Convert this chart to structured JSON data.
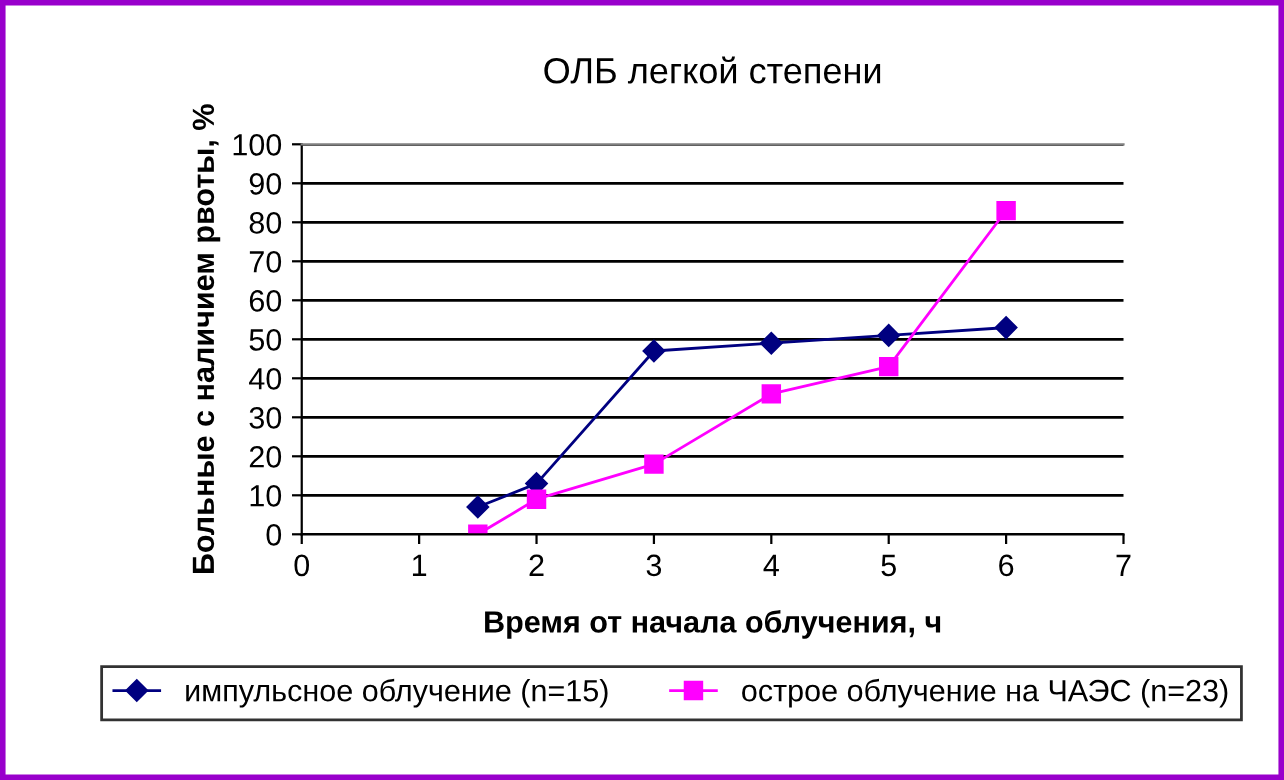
{
  "chart_data": {
    "type": "line",
    "title": "ОЛБ легкой степени",
    "xlabel": "Время от начала облучения, ч",
    "ylabel": "Больные с наличием рвоты, %",
    "x": [
      1.5,
      2,
      3,
      4,
      5,
      6
    ],
    "series": [
      {
        "name": "импульсное облучение (n=15)",
        "color": "#000080",
        "marker": "diamond",
        "values": [
          7,
          13,
          47,
          49,
          51,
          53
        ]
      },
      {
        "name": "острое облучение на ЧАЭС (n=23)",
        "color": "#ff00ff",
        "marker": "square",
        "values": [
          0,
          9,
          18,
          36,
          43,
          83
        ]
      }
    ],
    "xlim": [
      0,
      7
    ],
    "xticks": [
      0,
      1,
      2,
      3,
      4,
      5,
      6,
      7
    ],
    "ylim": [
      0,
      100
    ],
    "yticks": [
      0,
      10,
      20,
      30,
      40,
      50,
      60,
      70,
      80,
      90,
      100
    ],
    "grid": "y",
    "legend": "bottom",
    "line_style": "solid"
  }
}
